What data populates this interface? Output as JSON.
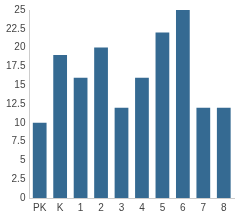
{
  "chart_data": {
    "type": "bar",
    "categories": [
      "PK",
      "K",
      "1",
      "2",
      "3",
      "4",
      "5",
      "6",
      "7",
      "8"
    ],
    "values": [
      10,
      19,
      16,
      20,
      12,
      16,
      22,
      25,
      12,
      12
    ],
    "color": "#356a92",
    "ylim": [
      0,
      25
    ],
    "yticks": [
      0,
      2.5,
      5,
      7.5,
      10,
      12.5,
      15,
      17.5,
      20,
      22.5,
      25
    ],
    "grid": false
  }
}
